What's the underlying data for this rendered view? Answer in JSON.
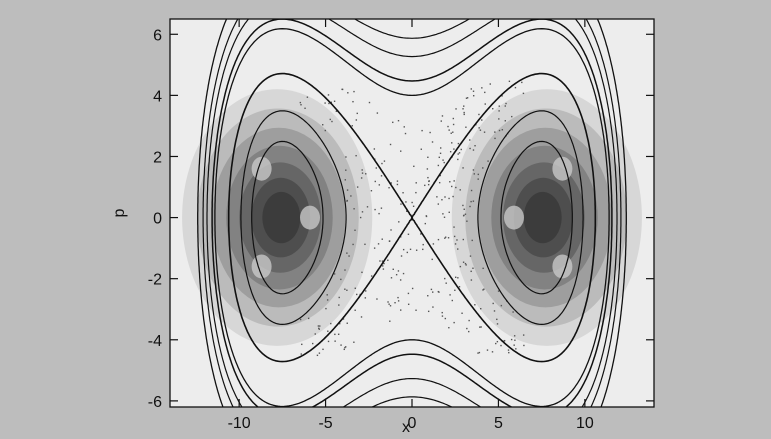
{
  "chart_data": {
    "type": "contour",
    "title": "",
    "xlabel": "x",
    "ylabel": "p",
    "xlim": [
      -14,
      14
    ],
    "ylim": [
      -6.2,
      6.5
    ],
    "xticks": [
      -10,
      -5,
      0,
      5,
      10
    ],
    "yticks": [
      -6,
      -4,
      -2,
      0,
      2,
      4,
      6
    ],
    "grid": false,
    "legend": "none",
    "potential": "double well, minima near x = -7.5 and x = 7.5",
    "series": [
      {
        "style": "dashed-long",
        "level": 3.0
      },
      {
        "style": "solid",
        "level": 2.55
      },
      {
        "style": "solid",
        "level": 2.25
      },
      {
        "style": "dashed-short",
        "level": 1.9
      },
      {
        "style": "dash-dot",
        "level": 1.72
      },
      {
        "style": "dotted-separatrix",
        "level": 1.0
      },
      {
        "style": "solid-inner",
        "level": 0.55
      },
      {
        "style": "solid-inner",
        "level": 0.28
      }
    ],
    "density": {
      "type": "heatmap",
      "centers": [
        [
          -7.5,
          0
        ],
        [
          7.5,
          0
        ]
      ],
      "extent_x": 5.5,
      "extent_p": 4.2
    },
    "colors": {
      "background": "#bdbdbd",
      "plot_background": "#ededed",
      "contour": "#111111",
      "density_dark": "#2e2e2e"
    }
  }
}
